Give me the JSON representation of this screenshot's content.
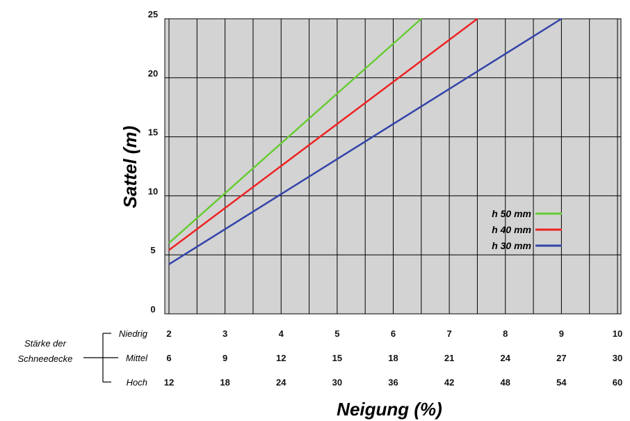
{
  "chart_data": {
    "type": "line",
    "title": "",
    "xlabel": "Neigung (%)",
    "ylabel": "Sattel (m)",
    "ylim": [
      0,
      25
    ],
    "yticks": [
      "0",
      "5",
      "10",
      "15",
      "20",
      "25"
    ],
    "grid": true,
    "legend_position": "right",
    "x_axis_group_label": [
      "Stärke der",
      "Schneedecke"
    ],
    "x_axis_rows": [
      {
        "label": "Niedrig",
        "ticks": [
          "2",
          "3",
          "4",
          "5",
          "6",
          "7",
          "8",
          "9",
          "10"
        ]
      },
      {
        "label": "Mittel",
        "ticks": [
          "6",
          "9",
          "12",
          "15",
          "18",
          "21",
          "24",
          "27",
          "30"
        ]
      },
      {
        "label": "Hoch",
        "ticks": [
          "12",
          "18",
          "24",
          "30",
          "36",
          "42",
          "48",
          "54",
          "60"
        ]
      }
    ],
    "x_values_niedrig": [
      2,
      3,
      4,
      5,
      6,
      7,
      8,
      9,
      10
    ],
    "series": [
      {
        "name": "h 50 mm",
        "color": "#66cc33",
        "x": [
          2,
          6.5
        ],
        "y": [
          6,
          25
        ]
      },
      {
        "name": "h 40 mm",
        "color": "#ee2222",
        "x": [
          2,
          7.5
        ],
        "y": [
          5.4,
          25
        ]
      },
      {
        "name": "h 30 mm",
        "color": "#3344aa",
        "x": [
          2,
          9
        ],
        "y": [
          4.2,
          25
        ]
      }
    ]
  }
}
